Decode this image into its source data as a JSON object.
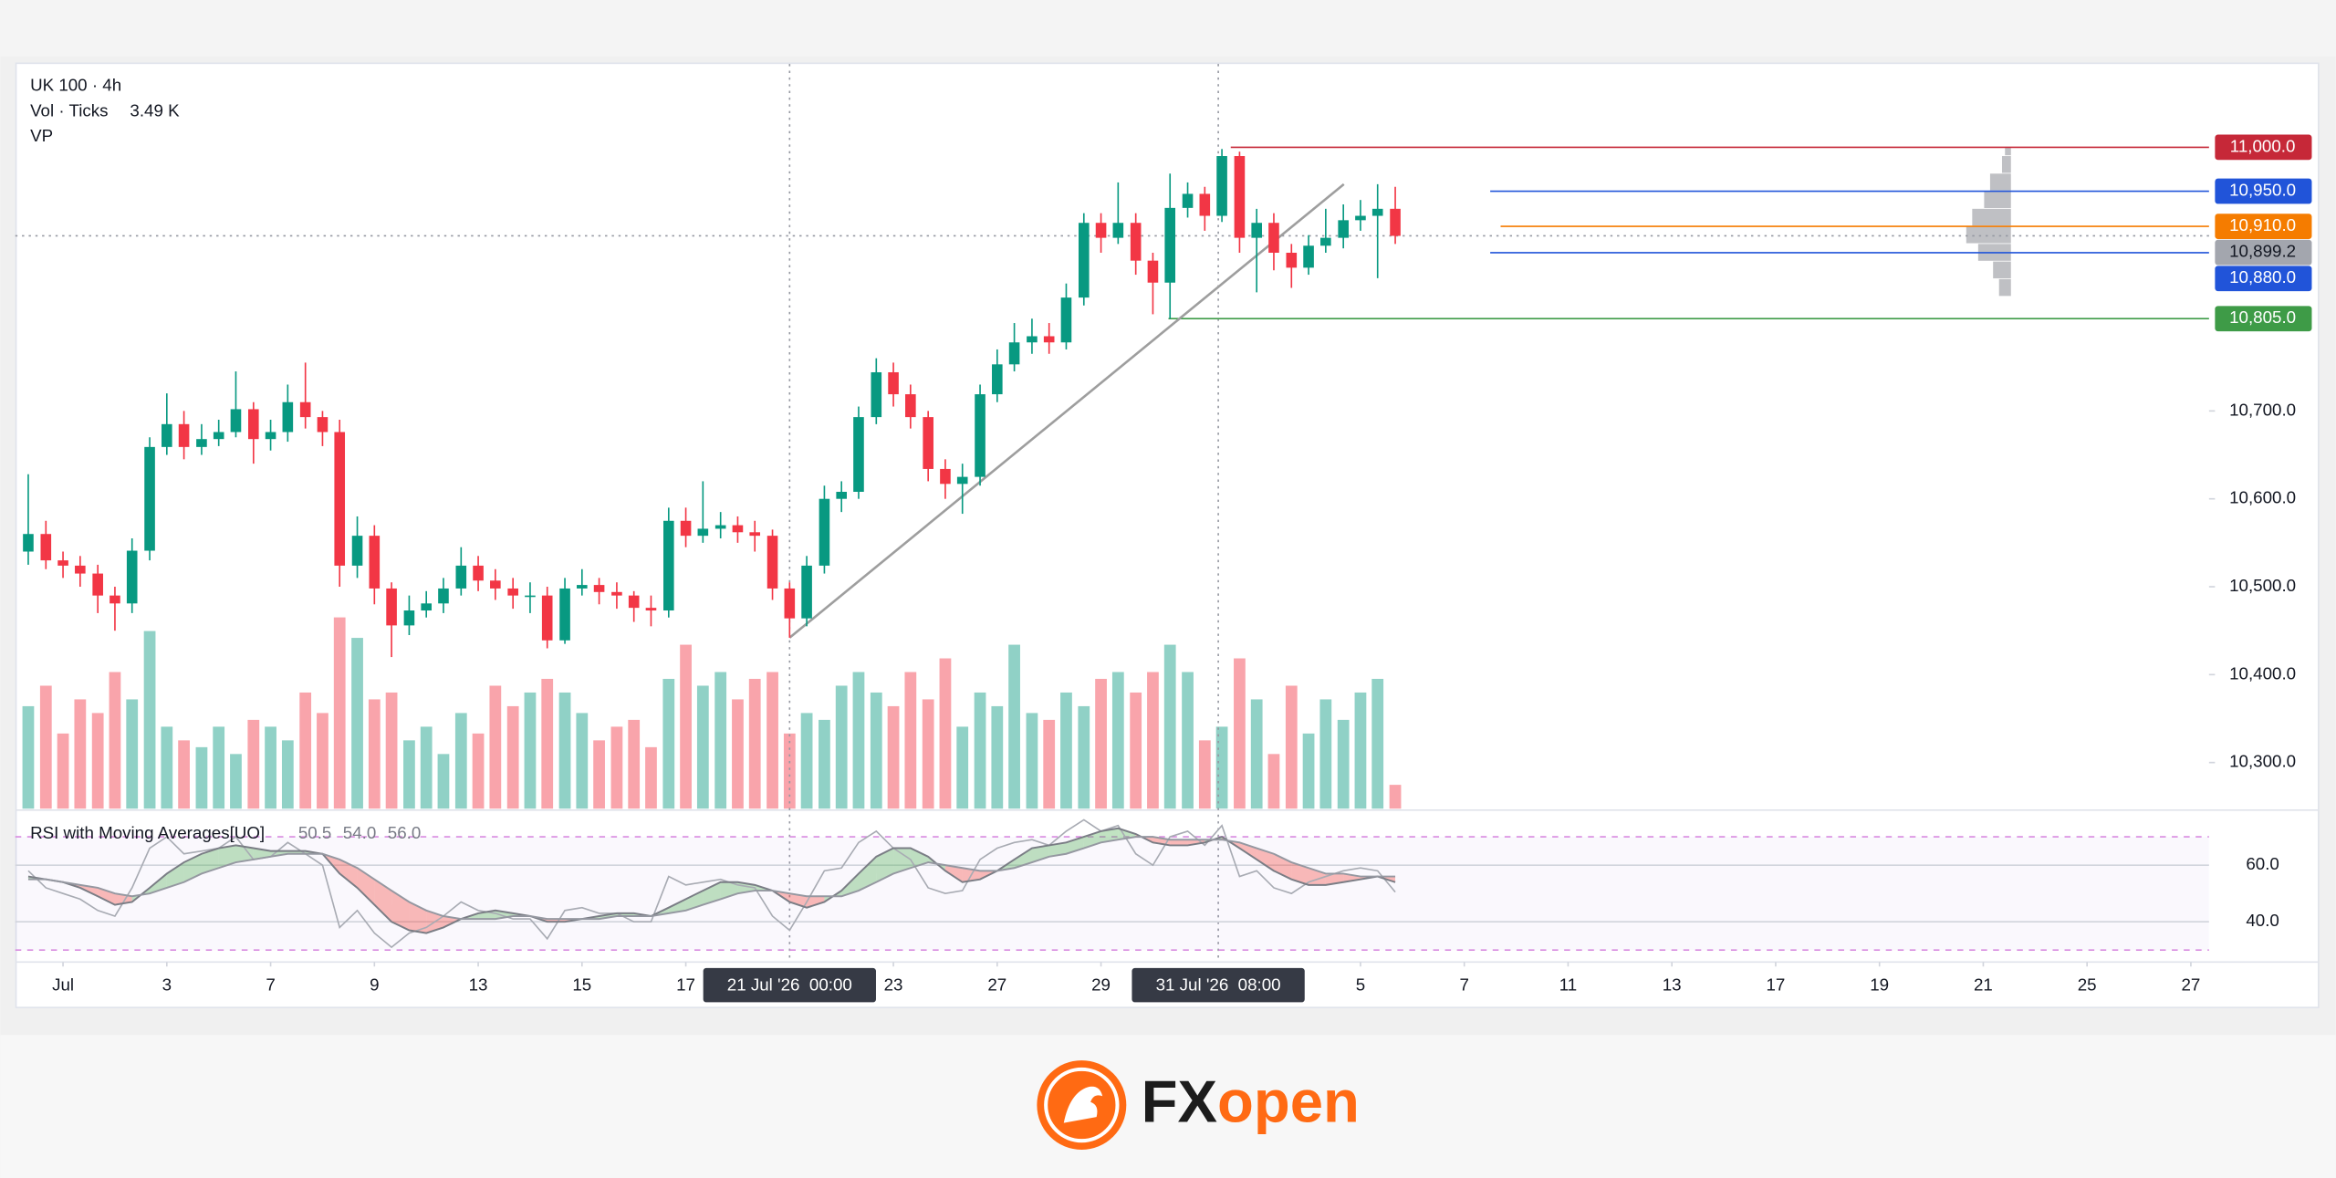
{
  "chart_data": {
    "type": "candlestick",
    "title": "UK 100 · 4h",
    "volume_title": "Vol · Ticks",
    "volume_last_label": "3.49 K",
    "profile_title": "VP",
    "x": [
      -0.67,
      -0.33,
      0,
      0.33,
      0.67,
      1,
      1.33,
      1.67,
      2,
      2.33,
      2.67,
      3,
      3.33,
      3.67,
      4,
      4.33,
      4.67,
      5,
      5.33,
      5.67,
      6,
      6.33,
      6.67,
      7,
      7.33,
      7.67,
      8,
      8.33,
      8.67,
      9,
      9.33,
      9.67,
      10,
      10.33,
      10.67,
      11,
      11.33,
      11.67,
      12,
      12.33,
      12.67,
      13,
      13.33,
      13.67,
      14,
      14.33,
      14.67,
      15,
      15.33,
      15.67,
      16,
      16.33,
      16.67,
      17,
      17.33,
      17.67,
      18,
      18.33,
      18.67,
      19,
      19.33,
      19.67,
      20,
      20.33,
      20.67,
      21,
      21.33,
      21.67,
      22,
      22.33,
      22.67,
      23,
      23.33,
      23.67,
      24,
      24.33,
      24.67,
      25,
      25.33,
      25.67
    ],
    "open": [
      10540,
      10560,
      10530,
      10524,
      10515,
      10490,
      10481,
      10541,
      10659,
      10685,
      10659,
      10668,
      10676,
      10702,
      10668,
      10676,
      10710,
      10693,
      10676,
      10524,
      10558,
      10498,
      10456,
      10473,
      10481,
      10498,
      10524,
      10507,
      10498,
      10490,
      10490,
      10439,
      10498,
      10502,
      10494,
      10490,
      10476,
      10473,
      10575,
      10558,
      10566,
      10570,
      10562,
      10558,
      10498,
      10464,
      10524,
      10600,
      10608,
      10693,
      10744,
      10719,
      10693,
      10634,
      10617,
      10625,
      10719,
      10753,
      10778,
      10785,
      10778,
      10829,
      10914,
      10897,
      10914,
      10871,
      10846,
      10931,
      10947,
      10922,
      10990,
      10897,
      10914,
      10880,
      10863,
      10888,
      10897,
      10917,
      10922,
      10930
    ],
    "high": [
      10628,
      10575,
      10540,
      10535,
      10525,
      10500,
      10555,
      10670,
      10720,
      10700,
      10685,
      10690,
      10745,
      10710,
      10690,
      10730,
      10755,
      10700,
      10690,
      10580,
      10570,
      10505,
      10490,
      10495,
      10510,
      10545,
      10535,
      10520,
      10510,
      10505,
      10500,
      10510,
      10520,
      10510,
      10505,
      10495,
      10490,
      10590,
      10590,
      10620,
      10585,
      10580,
      10575,
      10565,
      10505,
      10535,
      10615,
      10620,
      10705,
      10760,
      10755,
      10730,
      10700,
      10645,
      10640,
      10730,
      10770,
      10800,
      10805,
      10800,
      10845,
      10925,
      10925,
      10960,
      10925,
      10880,
      10970,
      10960,
      10955,
      10998,
      10995,
      10930,
      10925,
      10890,
      10900,
      10930,
      10935,
      10940,
      10958,
      10955
    ],
    "low": [
      10525,
      10520,
      10510,
      10500,
      10470,
      10450,
      10470,
      10530,
      10650,
      10645,
      10650,
      10660,
      10670,
      10640,
      10655,
      10665,
      10680,
      10660,
      10500,
      10510,
      10480,
      10420,
      10445,
      10465,
      10470,
      10490,
      10495,
      10485,
      10475,
      10470,
      10430,
      10435,
      10490,
      10480,
      10475,
      10460,
      10455,
      10465,
      10545,
      10550,
      10555,
      10550,
      10540,
      10485,
      10442,
      10455,
      10515,
      10585,
      10600,
      10685,
      10705,
      10680,
      10620,
      10600,
      10583,
      10615,
      10710,
      10745,
      10765,
      10765,
      10770,
      10820,
      10880,
      10890,
      10855,
      10810,
      10805,
      10920,
      10905,
      10915,
      10880,
      10835,
      10860,
      10840,
      10855,
      10880,
      10885,
      10905,
      10851,
      10890
    ],
    "close": [
      10560,
      10530,
      10524,
      10515,
      10490,
      10481,
      10541,
      10659,
      10685,
      10659,
      10668,
      10676,
      10702,
      10668,
      10676,
      10710,
      10693,
      10676,
      10524,
      10558,
      10498,
      10456,
      10473,
      10481,
      10498,
      10524,
      10507,
      10498,
      10490,
      10490,
      10439,
      10498,
      10502,
      10494,
      10490,
      10476,
      10473,
      10575,
      10558,
      10566,
      10570,
      10562,
      10558,
      10498,
      10464,
      10524,
      10600,
      10608,
      10693,
      10744,
      10719,
      10693,
      10634,
      10617,
      10625,
      10719,
      10753,
      10778,
      10785,
      10778,
      10829,
      10914,
      10897,
      10914,
      10871,
      10846,
      10931,
      10947,
      10922,
      10990,
      10897,
      10914,
      10880,
      10863,
      10888,
      10897,
      10917,
      10922,
      10930,
      10899.2
    ],
    "up_color": "#089981",
    "down_color": "#f23645",
    "volume": [
      15000,
      18000,
      11000,
      16000,
      14000,
      20000,
      16000,
      26000,
      12000,
      10000,
      9000,
      12000,
      8000,
      13000,
      12000,
      10000,
      17000,
      14000,
      28000,
      25000,
      16000,
      17000,
      10000,
      12000,
      8000,
      14000,
      11000,
      18000,
      15000,
      17000,
      19000,
      17000,
      14000,
      10000,
      12000,
      13000,
      9000,
      19000,
      24000,
      18000,
      20000,
      16000,
      19000,
      20000,
      11000,
      14000,
      13000,
      18000,
      20000,
      17000,
      15000,
      20000,
      16000,
      22000,
      12000,
      17000,
      15000,
      24000,
      14000,
      13000,
      17000,
      15000,
      19000,
      20000,
      17000,
      20000,
      24000,
      20000,
      10000,
      12000,
      22000,
      16000,
      8000,
      18000,
      11000,
      16000,
      13000,
      17000,
      19000,
      3490
    ],
    "volume_ylim": [
      0,
      32700
    ],
    "xlim": [
      -0.92,
      41.35
    ],
    "xticks": [
      {
        "value": 0,
        "label": "Jul"
      },
      {
        "value": 2,
        "label": "3"
      },
      {
        "value": 4,
        "label": "7"
      },
      {
        "value": 6,
        "label": "9"
      },
      {
        "value": 8,
        "label": "13"
      },
      {
        "value": 10,
        "label": "15"
      },
      {
        "value": 12,
        "label": "17"
      },
      {
        "value": 16,
        "label": "23"
      },
      {
        "value": 18,
        "label": "27"
      },
      {
        "value": 20,
        "label": "29"
      },
      {
        "value": 25,
        "label": "5"
      },
      {
        "value": 27,
        "label": "7"
      },
      {
        "value": 29,
        "label": "11"
      },
      {
        "value": 31,
        "label": "13"
      },
      {
        "value": 33,
        "label": "17"
      },
      {
        "value": 35,
        "label": "19"
      },
      {
        "value": 37,
        "label": "21"
      },
      {
        "value": 39,
        "label": "25"
      },
      {
        "value": 41,
        "label": "27"
      }
    ],
    "ylim": [
      10247.5,
      11093
    ],
    "yticks": [
      {
        "value": 10300,
        "label": "10,300.0"
      },
      {
        "value": 10400,
        "label": "10,400.0"
      },
      {
        "value": 10500,
        "label": "10,500.0"
      },
      {
        "value": 10600,
        "label": "10,600.0"
      },
      {
        "value": 10700,
        "label": "10,700.0"
      }
    ],
    "price_levels": [
      {
        "value": 11000,
        "label": "11,000.0",
        "color": "#c62838",
        "from": 22.5
      },
      {
        "value": 10950,
        "label": "10,950.0",
        "color": "#2154d9",
        "from": 27.5
      },
      {
        "value": 10910,
        "label": "10,910.0",
        "color": "#f57c00",
        "from": 27.7
      },
      {
        "value": 10899.2,
        "label": "10,899.2",
        "color": "#a3a6ae",
        "from": -0.92,
        "dotted": true,
        "text_color": "#131722"
      },
      {
        "value": 10880,
        "label": "10,880.0",
        "color": "#2154d9",
        "from": 27.5
      },
      {
        "value": 10805,
        "label": "10,805.0",
        "color": "#3e9b47",
        "from": 21.3
      }
    ],
    "crosshairs": [
      {
        "x": 14,
        "label": "21 Jul '26  00:00"
      },
      {
        "x": 22.26,
        "label": "31 Jul '26  08:00"
      }
    ],
    "trendline": {
      "x": [
        14,
        24.68
      ],
      "y": [
        10442,
        10958
      ],
      "color": "#9e9e9e"
    },
    "volume_profile": {
      "bins": [
        10830,
        10850,
        10870,
        10890,
        10910,
        10930,
        10950,
        10970,
        10990,
        11000
      ],
      "values": [
        8,
        12,
        22,
        30,
        26,
        18,
        14,
        6,
        4
      ],
      "xlim": [
        0,
        100
      ],
      "color": "#8a8d94"
    },
    "rsi": {
      "title": "RSI with Moving Averages[UO]",
      "ylim": [
        26.3,
        78.9
      ],
      "yticks": [
        {
          "value": 40,
          "label": "40.0"
        },
        {
          "value": 60,
          "label": "60.0"
        }
      ],
      "bands": [
        30,
        70
      ],
      "fill_up": "#4caf50",
      "fill_down": "#f44336",
      "series": [
        {
          "color": "#a8abb3",
          "last_label": "50.5",
          "values": [
            58,
            52,
            50,
            48,
            44,
            42,
            52,
            66,
            70,
            64,
            65,
            66,
            70,
            62,
            63,
            68,
            64,
            60,
            38,
            44,
            36,
            31,
            36,
            38,
            42,
            47,
            44,
            43,
            41,
            41,
            34,
            44,
            45,
            43,
            43,
            40,
            40,
            56,
            53,
            54,
            55,
            53,
            52,
            42,
            37,
            47,
            58,
            59,
            68,
            72,
            66,
            62,
            52,
            50,
            51,
            62,
            66,
            68,
            69,
            67,
            72,
            76,
            72,
            74,
            64,
            60,
            70,
            72,
            67,
            74,
            56,
            58,
            52,
            50,
            54,
            56,
            58,
            59,
            58,
            50.5
          ]
        },
        {
          "color": "#7a7d85",
          "last_label": "54.0",
          "values": [
            56,
            55,
            54,
            52,
            49,
            46,
            47,
            52,
            57,
            61,
            64,
            66,
            67,
            66,
            65,
            65,
            65,
            64,
            57,
            52,
            46,
            40,
            37,
            36,
            38,
            41,
            43,
            44,
            43,
            42,
            40,
            40,
            41,
            42,
            43,
            43,
            42,
            45,
            48,
            51,
            54,
            54,
            53,
            51,
            47,
            45,
            47,
            51,
            57,
            63,
            66,
            66,
            63,
            58,
            54,
            55,
            58,
            62,
            66,
            67,
            68,
            70,
            72,
            73,
            71,
            68,
            67,
            67,
            68,
            70,
            66,
            62,
            58,
            55,
            53,
            53,
            54,
            55,
            56,
            54.0
          ]
        },
        {
          "color": "#9598a1",
          "last_label": "56.0",
          "values": [
            55,
            55,
            54,
            53,
            52,
            50,
            49,
            50,
            52,
            54,
            57,
            59,
            61,
            62,
            63,
            64,
            64,
            64,
            62,
            59,
            55,
            51,
            47,
            44,
            42,
            41,
            41,
            41,
            42,
            42,
            41,
            41,
            41,
            41,
            42,
            42,
            42,
            43,
            44,
            46,
            48,
            50,
            51,
            51,
            50,
            49,
            49,
            49,
            51,
            54,
            57,
            59,
            61,
            60,
            59,
            58,
            58,
            59,
            61,
            63,
            64,
            66,
            68,
            69,
            70,
            70,
            69,
            69,
            69,
            69,
            68,
            66,
            64,
            61,
            59,
            57,
            57,
            56,
            56,
            56.0
          ]
        }
      ]
    }
  },
  "footer": {
    "logo_fx": "FX",
    "logo_open": "open"
  }
}
